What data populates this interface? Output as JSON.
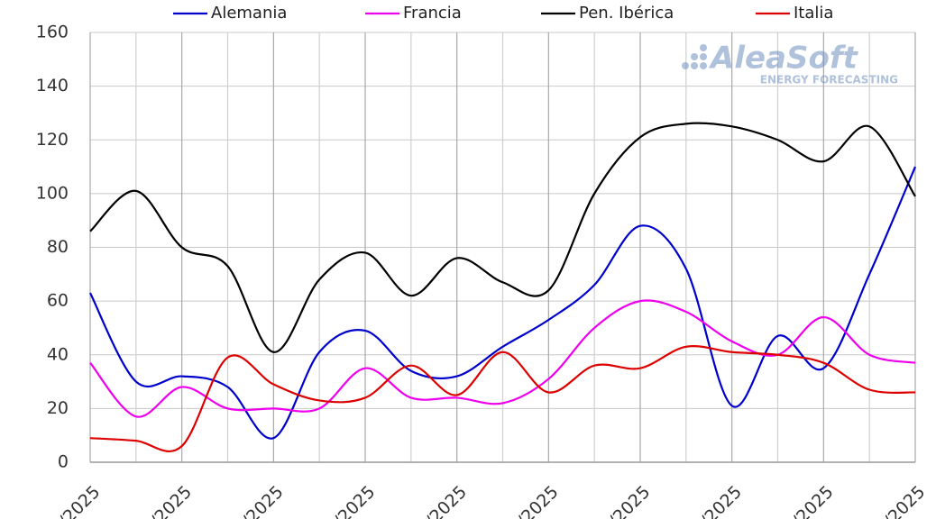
{
  "chart_data": {
    "type": "line",
    "categories": [
      "/2025",
      null,
      "/2025",
      null,
      "/2025",
      null,
      "/2025",
      null,
      "/2025",
      null,
      "/2025",
      null,
      "/2025",
      null,
      "/2025",
      null,
      "/2025",
      null,
      "/2025"
    ],
    "series": [
      {
        "name": "Alemania",
        "color": "#0000cc",
        "values": [
          63,
          30,
          32,
          28,
          9,
          41,
          49,
          34,
          32,
          43,
          53,
          66,
          88,
          72,
          21,
          47,
          35,
          70,
          110
        ]
      },
      {
        "name": "Francia",
        "color": "#ee00ee",
        "values": [
          37,
          17,
          28,
          20,
          20,
          20,
          35,
          24,
          24,
          22,
          31,
          50,
          60,
          56,
          45,
          40,
          54,
          40,
          37
        ]
      },
      {
        "name": "Pen. Ibérica",
        "color": "#000000",
        "values": [
          86,
          101,
          80,
          73,
          41,
          68,
          78,
          62,
          76,
          67,
          64,
          100,
          121,
          126,
          125,
          120,
          112,
          125,
          99
        ]
      },
      {
        "name": "Italia",
        "color": "#dd0000",
        "values": [
          9,
          8,
          6,
          39,
          29,
          23,
          24,
          36,
          25,
          41,
          26,
          36,
          35,
          43,
          41,
          40,
          37,
          27,
          26
        ]
      }
    ],
    "ylim": [
      0,
      160
    ],
    "yticks": [
      0,
      20,
      40,
      60,
      80,
      100,
      120,
      140,
      160
    ],
    "grid": true,
    "watermark": {
      "title": "AleaSoft",
      "subtitle": "ENERGY FORECASTING"
    }
  }
}
